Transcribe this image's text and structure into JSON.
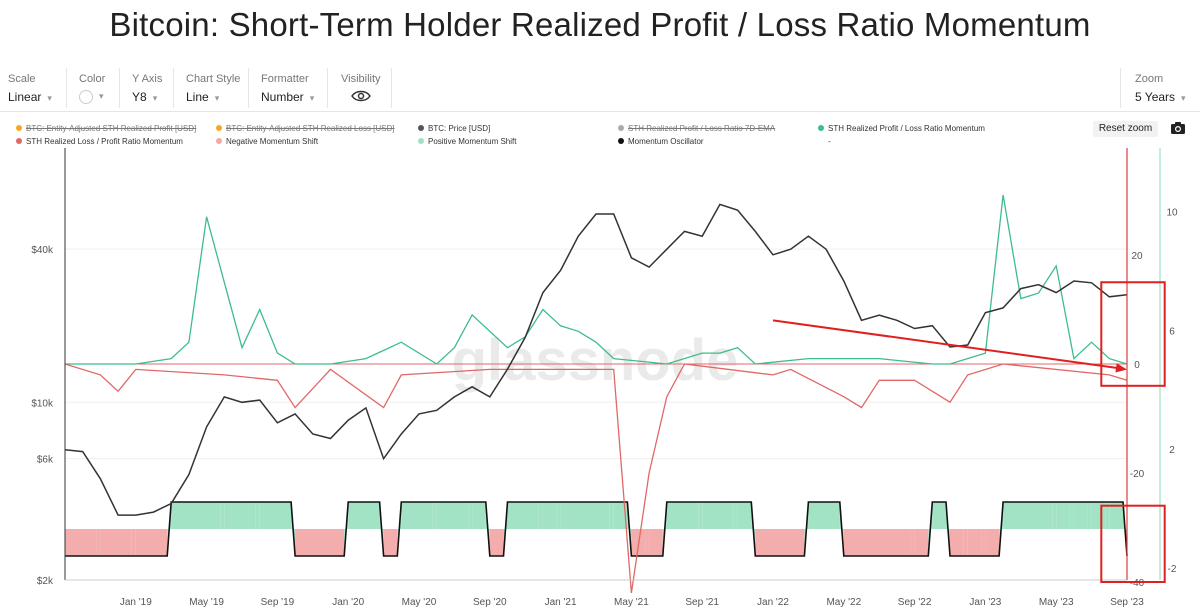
{
  "title": "Bitcoin: Short-Term Holder Realized Profit / Loss Ratio Momentum",
  "toolbar": {
    "scale": {
      "label": "Scale",
      "value": "Linear"
    },
    "color": {
      "label": "Color"
    },
    "y_axis": {
      "label": "Y Axis",
      "value": "Y8"
    },
    "chart_style": {
      "label": "Chart Style",
      "value": "Line"
    },
    "formatter": {
      "label": "Formatter",
      "value": "Number"
    },
    "visibility": {
      "label": "Visibility"
    },
    "zoom": {
      "label": "Zoom",
      "value": "5 Years"
    }
  },
  "reset_zoom": "Reset zoom",
  "watermark": "glassnode",
  "icons": {
    "chevron": "chevron-down-icon",
    "visibility": "eye-icon",
    "camera": "camera-icon"
  },
  "colors": {
    "price": "#333333",
    "momentum_green": "#3dbd8b",
    "momentum_red": "#e06868",
    "negative_shift": "#f2a9a9",
    "positive_shift": "#9ee2c2",
    "oscillator": "#111111",
    "annotation": "#e02020",
    "profit_orange": "#f5a623"
  },
  "chart_data": {
    "type": "line",
    "legend_placement": "top",
    "grid": true,
    "x_ticks": [
      "Jan '19",
      "May '19",
      "Sep '19",
      "Jan '20",
      "May '20",
      "Sep '20",
      "Jan '21",
      "May '21",
      "Sep '21",
      "Jan '22",
      "May '22",
      "Sep '22",
      "Jan '23",
      "May '23",
      "Sep '23"
    ],
    "x_range": [
      "2018-09",
      "2023-09"
    ],
    "y_left": {
      "ticks": [
        "$2k",
        "$6k",
        "$10k",
        "$40k"
      ],
      "scale": "log"
    },
    "y_right_inner": {
      "ticks": [
        "20",
        "0",
        "-20",
        "-40"
      ],
      "range": [
        -40,
        25
      ]
    },
    "y_right_outer": {
      "ticks": [
        "10",
        "6",
        "2",
        "-2"
      ],
      "range": [
        -2,
        12
      ]
    },
    "legend": [
      {
        "name": "BTC: Entity-Adjusted STH Realized Profit [USD]",
        "color": "#f5a623",
        "hidden": true
      },
      {
        "name": "BTC: Entity-Adjusted STH Realized Loss [USD]",
        "color": "#f5a623",
        "hidden": true
      },
      {
        "name": "BTC: Price [USD]",
        "color": "#555555",
        "hidden": false
      },
      {
        "name": "STH Realized Profit / Loss Ratio 7D-EMA",
        "color": "#aaaaaa",
        "hidden": true
      },
      {
        "name": "STH Realized Profit / Loss Ratio Momentum",
        "color": "#3dbd8b",
        "hidden": false
      },
      {
        "name": "STH Realized Loss / Profit Ratio Momentum",
        "color": "#e06868",
        "hidden": false
      },
      {
        "name": "Negative Momentum Shift",
        "color": "#f2a9a9",
        "hidden": false
      },
      {
        "name": "Positive Momentum Shift",
        "color": "#9ee2c2",
        "hidden": false
      },
      {
        "name": "Momentum Oscillator",
        "color": "#111111",
        "hidden": false
      },
      {
        "name": "-",
        "color": "#ffffff",
        "hidden": false
      }
    ],
    "series": [
      {
        "name": "BTC: Price [USD]",
        "axis": "left",
        "x": [
          "2018-09",
          "2018-10",
          "2018-11",
          "2018-12",
          "2019-01",
          "2019-02",
          "2019-03",
          "2019-04",
          "2019-05",
          "2019-06",
          "2019-07",
          "2019-08",
          "2019-09",
          "2019-10",
          "2019-11",
          "2019-12",
          "2020-01",
          "2020-02",
          "2020-03",
          "2020-04",
          "2020-05",
          "2020-06",
          "2020-07",
          "2020-08",
          "2020-09",
          "2020-10",
          "2020-11",
          "2020-12",
          "2021-01",
          "2021-02",
          "2021-03",
          "2021-04",
          "2021-05",
          "2021-06",
          "2021-07",
          "2021-08",
          "2021-09",
          "2021-10",
          "2021-11",
          "2021-12",
          "2022-01",
          "2022-02",
          "2022-03",
          "2022-04",
          "2022-05",
          "2022-06",
          "2022-07",
          "2022-08",
          "2022-09",
          "2022-10",
          "2022-11",
          "2022-12",
          "2023-01",
          "2023-02",
          "2023-03",
          "2023-04",
          "2023-05",
          "2023-06",
          "2023-07",
          "2023-08",
          "2023-09"
        ],
        "values": [
          6500,
          6400,
          5000,
          3600,
          3600,
          3700,
          4000,
          5200,
          8000,
          10500,
          10000,
          10200,
          8300,
          9000,
          7500,
          7200,
          8500,
          9500,
          6000,
          7500,
          9000,
          9300,
          10500,
          11500,
          10500,
          13500,
          18000,
          27000,
          33000,
          45000,
          55000,
          55000,
          37000,
          34000,
          40000,
          47000,
          45000,
          60000,
          57000,
          47000,
          38000,
          40000,
          45000,
          40000,
          30000,
          21000,
          22000,
          21000,
          19500,
          20000,
          16500,
          16800,
          22500,
          23500,
          28000,
          29000,
          27000,
          30000,
          29500,
          26000,
          26500
        ]
      },
      {
        "name": "STH Realized Profit / Loss Ratio Momentum",
        "axis": "right_inner",
        "x": [
          "2018-09",
          "2018-11",
          "2019-01",
          "2019-03",
          "2019-04",
          "2019-05",
          "2019-06",
          "2019-07",
          "2019-08",
          "2019-09",
          "2019-10",
          "2019-12",
          "2020-02",
          "2020-04",
          "2020-06",
          "2020-07",
          "2020-08",
          "2020-10",
          "2020-11",
          "2020-12",
          "2021-01",
          "2021-02",
          "2021-03",
          "2021-04",
          "2021-07",
          "2021-09",
          "2021-10",
          "2021-11",
          "2021-12",
          "2022-03",
          "2022-07",
          "2022-10",
          "2022-11",
          "2023-01",
          "2023-02",
          "2023-03",
          "2023-04",
          "2023-05",
          "2023-06",
          "2023-07",
          "2023-08",
          "2023-09"
        ],
        "values": [
          0,
          0,
          0,
          1,
          4,
          27,
          15,
          3,
          10,
          2,
          0,
          0,
          1,
          4,
          0,
          3,
          9,
          3,
          5,
          10,
          7,
          6,
          4,
          1,
          0,
          2,
          2,
          3,
          0,
          1,
          1,
          0,
          0,
          2,
          31,
          12,
          13,
          18,
          1,
          4,
          1,
          0
        ]
      },
      {
        "name": "STH Realized Loss / Profit Ratio Momentum",
        "axis": "right_inner",
        "x": [
          "2018-09",
          "2018-11",
          "2018-12",
          "2019-01",
          "2019-06",
          "2019-09",
          "2019-10",
          "2019-12",
          "2020-03",
          "2020-04",
          "2020-09",
          "2021-04",
          "2021-05",
          "2021-06",
          "2021-07",
          "2021-08",
          "2022-01",
          "2022-02",
          "2022-05",
          "2022-06",
          "2022-07",
          "2022-09",
          "2022-11",
          "2022-12",
          "2023-02",
          "2023-08",
          "2023-09"
        ],
        "values": [
          0,
          -2,
          -5,
          -1,
          -2,
          -3,
          -8,
          -1,
          -8,
          -2,
          -1,
          -1,
          -42,
          -20,
          -6,
          0,
          -2,
          -1,
          -6,
          -8,
          -3,
          -3,
          -7,
          -2,
          0,
          -2,
          -3
        ]
      },
      {
        "name": "Momentum Oscillator",
        "axis": "right_outer",
        "x": [
          "2018-09",
          "2018-11",
          "2019-01",
          "2019-03",
          "2019-06",
          "2019-08",
          "2019-10",
          "2019-12",
          "2020-01",
          "2020-03",
          "2020-04",
          "2020-06",
          "2020-08",
          "2020-09",
          "2020-10",
          "2020-12",
          "2021-01",
          "2021-04",
          "2021-05",
          "2021-06",
          "2021-07",
          "2021-09",
          "2021-11",
          "2021-12",
          "2022-01",
          "2022-03",
          "2022-05",
          "2022-09",
          "2022-10",
          "2022-11",
          "2022-12",
          "2023-01",
          "2023-02",
          "2023-04",
          "2023-05",
          "2023-06",
          "2023-07",
          "2023-08",
          "2023-09"
        ],
        "values": [
          0,
          0,
          0,
          1,
          1,
          1,
          0,
          0,
          1,
          0,
          1,
          1,
          1,
          0,
          1,
          1,
          1,
          1,
          0,
          0,
          1,
          1,
          1,
          0,
          0,
          1,
          0,
          0,
          1,
          0,
          0,
          0,
          1,
          1,
          1,
          1,
          1,
          1,
          0
        ]
      }
    ],
    "annotations": [
      {
        "type": "arrow",
        "from": {
          "x": "2022-01",
          "y": 8
        },
        "to": {
          "x": "2023-09",
          "y": -1
        }
      },
      {
        "type": "box",
        "x_from": "2023-08",
        "x_to": "2023-10",
        "y_from": -4,
        "y_to": 15
      },
      {
        "type": "box",
        "x_from": "2023-08",
        "x_to": "2023-10",
        "y_from": -40,
        "y_to": -26
      }
    ]
  }
}
